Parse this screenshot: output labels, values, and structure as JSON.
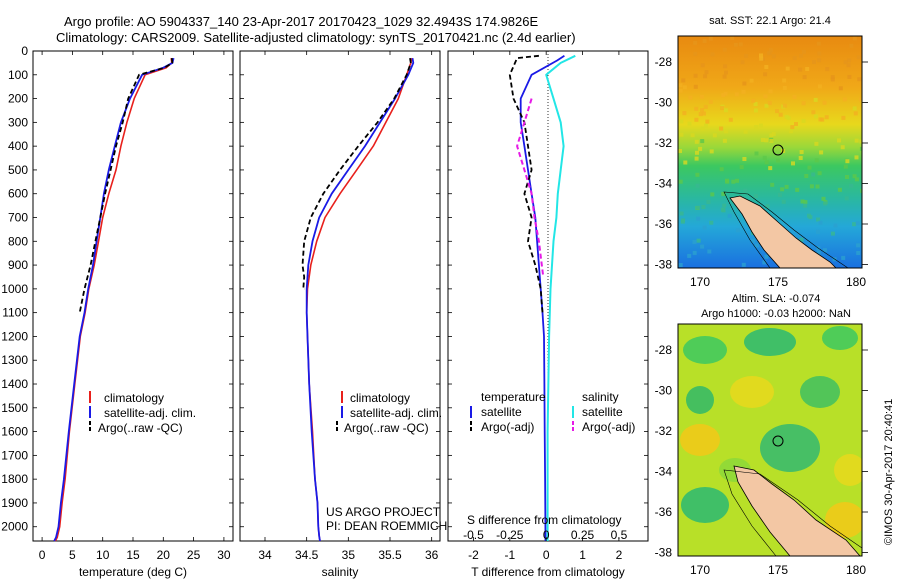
{
  "header": {
    "title_line1": "Argo profile: AO 5904337_140 23-Apr-2017 20170423_1029 32.4943S 174.9826E",
    "title_line2": "Climatology: CARS2009. Satellite-adjusted climatology: synTS_20170421.nc (2.4d earlier)"
  },
  "colors": {
    "climatology": "#e8201c",
    "satellite": "#1a1ae6",
    "argo": "#000000",
    "s_satellite": "#22e6e6",
    "s_argo": "#e61ae6",
    "land": "#f3c7a4"
  },
  "depth_ticks": [
    "0",
    "100",
    "200",
    "300",
    "400",
    "500",
    "600",
    "700",
    "800",
    "900",
    "1000",
    "1100",
    "1200",
    "1300",
    "1400",
    "1500",
    "1600",
    "1700",
    "1800",
    "1900",
    "2000"
  ],
  "chart_data": [
    {
      "type": "line",
      "panel": "temperature",
      "xlabel": "temperature (deg C)",
      "xlim": [
        -1.5,
        31.5
      ],
      "xticks": [
        "0",
        "5",
        "10",
        "15",
        "20",
        "25",
        "30"
      ],
      "ylim": [
        0,
        2060
      ],
      "legend": [
        "climatology",
        "satellite-adj. clim.",
        "Argo(..raw -QC)"
      ],
      "series": [
        {
          "name": "climatology",
          "x": [
            21.3,
            21.4,
            20.5,
            17.0,
            15.2,
            14.0,
            13.0,
            12.2,
            11.0,
            10.0,
            9.3,
            8.6,
            7.7,
            7.1,
            6.3,
            5.4,
            4.5,
            3.8,
            3.3,
            2.9,
            2.5,
            2.2
          ],
          "y": [
            30,
            50,
            70,
            100,
            200,
            300,
            400,
            500,
            600,
            700,
            800,
            900,
            1000,
            1100,
            1200,
            1400,
            1600,
            1800,
            1900,
            2000,
            2045,
            2060
          ]
        },
        {
          "name": "satellite-adj. clim.",
          "x": [
            21.7,
            21.5,
            20.0,
            16.5,
            14.5,
            13.0,
            12.0,
            11.0,
            10.2,
            9.6,
            9.0,
            8.4,
            7.6,
            7.0,
            6.2,
            5.3,
            4.4,
            3.6,
            3.1,
            2.7,
            2.3,
            2.0
          ],
          "y": [
            30,
            50,
            70,
            100,
            200,
            300,
            400,
            500,
            600,
            700,
            800,
            900,
            1000,
            1100,
            1200,
            1400,
            1600,
            1800,
            1900,
            2000,
            2045,
            2060
          ]
        },
        {
          "name": "Argo(..raw -QC)",
          "x": [
            21.4,
            21.5,
            20.2,
            16.0,
            14.2,
            13.3,
            12.2,
            11.3,
            10.4,
            9.6,
            8.8,
            8.0,
            7.0,
            6.2
          ],
          "y": [
            30,
            50,
            70,
            100,
            200,
            300,
            400,
            500,
            600,
            700,
            800,
            900,
            1000,
            1100
          ]
        }
      ]
    },
    {
      "type": "line",
      "panel": "salinity",
      "xlabel": "salinity",
      "xlim": [
        33.7,
        36.1
      ],
      "xticks": [
        "34",
        "34.5",
        "35",
        "35.5",
        "36"
      ],
      "ylim": [
        0,
        2060
      ],
      "legend": [
        "climatology",
        "satellite-adj. clim.",
        "Argo(..raw -QC)"
      ],
      "annotation": [
        "US ARGO PROJECT",
        "PI: DEAN ROEMMICH"
      ],
      "series": [
        {
          "name": "climatology",
          "x": [
            35.76,
            35.75,
            35.7,
            35.6,
            35.45,
            35.3,
            35.1,
            34.9,
            34.72,
            34.62,
            34.55,
            34.51,
            34.5,
            34.51,
            34.53,
            34.57,
            34.6,
            34.63,
            34.64,
            34.65,
            34.66
          ],
          "y": [
            30,
            50,
            100,
            200,
            300,
            400,
            500,
            600,
            700,
            800,
            900,
            1000,
            1100,
            1200,
            1400,
            1600,
            1800,
            1900,
            2000,
            2040,
            2060
          ]
        },
        {
          "name": "satellite-adj. clim.",
          "x": [
            35.77,
            35.78,
            35.72,
            35.56,
            35.38,
            35.2,
            35.0,
            34.8,
            34.65,
            34.57,
            34.52,
            34.5,
            34.5,
            34.51,
            34.53,
            34.56,
            34.6,
            34.63,
            34.64,
            34.65,
            34.66
          ],
          "y": [
            30,
            50,
            100,
            200,
            300,
            400,
            500,
            600,
            700,
            800,
            900,
            1000,
            1100,
            1200,
            1400,
            1600,
            1800,
            1900,
            2000,
            2040,
            2060
          ]
        },
        {
          "name": "Argo(..raw -QC)",
          "x": [
            35.74,
            35.75,
            35.7,
            35.55,
            35.35,
            35.12,
            34.9,
            34.7,
            34.55,
            34.47,
            34.45,
            34.47,
            34.46,
            34.48
          ],
          "y": [
            30,
            50,
            100,
            200,
            300,
            400,
            500,
            600,
            700,
            800,
            900,
            950,
            1000,
            1000
          ]
        }
      ]
    },
    {
      "type": "line",
      "panel": "differences",
      "xlabel": "T difference from climatology",
      "xlabel_top": "S difference from climatology",
      "xlim": [
        -2.7,
        2.8
      ],
      "xticks": [
        "-2",
        "-1",
        "0",
        "1",
        "2"
      ],
      "xticks_s": [
        "-0.5",
        "-0.25",
        "0",
        "0.25",
        "0.5"
      ],
      "ylim": [
        0,
        2060
      ],
      "legend": {
        "temperature_heading": "temperature",
        "salinity_heading": "salinity",
        "items": [
          "satellite",
          "Argo(-adj)",
          "satellite",
          "Argo(-adj)"
        ]
      },
      "series": [
        {
          "name": "temperature satellite",
          "x": [
            0.5,
            0.3,
            -0.4,
            -0.7,
            -0.7,
            -0.6,
            -0.5,
            -0.4,
            -0.3,
            -0.25,
            -0.2,
            -0.15,
            -0.1,
            -0.06,
            -0.05,
            -0.04,
            -0.03,
            -0.02
          ],
          "y": [
            20,
            40,
            100,
            200,
            300,
            400,
            500,
            600,
            700,
            800,
            900,
            1000,
            1100,
            1200,
            1400,
            1600,
            1800,
            2060
          ]
        },
        {
          "name": "temperature Argo(-adj)",
          "x": [
            -0.2,
            -0.8,
            -1.0,
            -0.9,
            -0.6,
            -0.5,
            -0.4,
            -0.6,
            -0.4,
            -0.5,
            -0.3,
            -0.15,
            -0.1
          ],
          "y": [
            20,
            30,
            100,
            200,
            300,
            400,
            500,
            600,
            700,
            800,
            900,
            1000,
            1100
          ]
        },
        {
          "name": "salinity satellite",
          "x": [
            0.2,
            0.1,
            0.0,
            0.05,
            0.1,
            0.12,
            0.1,
            0.08,
            0.07,
            0.05,
            0.04,
            0.03,
            0.02,
            0.01,
            0.01
          ],
          "y": [
            20,
            50,
            100,
            200,
            300,
            400,
            500,
            600,
            700,
            800,
            900,
            1000,
            1200,
            1600,
            2060
          ]
        },
        {
          "name": "salinity Argo(-adj)",
          "x": [
            -0.1,
            -0.15,
            -0.2,
            -0.15,
            -0.1,
            -0.08,
            -0.05,
            -0.03,
            -0.02
          ],
          "y": [
            200,
            300,
            400,
            500,
            600,
            700,
            800,
            900,
            950
          ]
        }
      ]
    }
  ],
  "maps": [
    {
      "title": "sat. SST: 22.1  Argo: 21.4",
      "yticks": [
        "-28",
        "-30",
        "-32",
        "-34",
        "-36",
        "-38"
      ],
      "xticks": [
        "170",
        "175",
        "180"
      ]
    },
    {
      "title_line1": "Altim. SLA: -0.074",
      "title_line2": "Argo h1000: -0.03 h2000: NaN",
      "yticks": [
        "-28",
        "-30",
        "-32",
        "-34",
        "-36",
        "-38"
      ],
      "xticks": [
        "170",
        "175",
        "180"
      ]
    }
  ],
  "credit": "©IMOS 30-Apr-2017 20:40:41"
}
